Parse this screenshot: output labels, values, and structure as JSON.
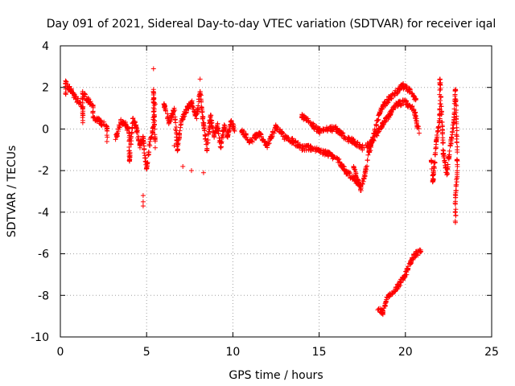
{
  "chart_data": {
    "type": "scatter",
    "title": "Day 091 of 2021, Sidereal Day-to-day VTEC variation (SDTVAR) for receiver iqal",
    "xlabel": "GPS time / hours",
    "ylabel": "SDTVAR / TECUs",
    "xlim": [
      0,
      25
    ],
    "ylim": [
      -10,
      4
    ],
    "xticks": [
      0,
      5,
      10,
      15,
      20,
      25
    ],
    "yticks": [
      -10,
      -8,
      -6,
      -4,
      -2,
      0,
      2,
      4
    ],
    "grid": true,
    "marker": "+",
    "color": "#ff0000",
    "series": [
      {
        "name": "SDTVAR",
        "approximate_track": [
          {
            "segment": "a",
            "points": [
              [
                0.3,
                1.7
              ],
              [
                0.3,
                2.2
              ],
              [
                1.3,
                1.0
              ],
              [
                1.3,
                0.3
              ],
              [
                1.3,
                1.7
              ],
              [
                1.9,
                1.1
              ],
              [
                1.9,
                0.6
              ],
              [
                2.7,
                0.1
              ],
              [
                2.7,
                -0.6
              ]
            ]
          },
          {
            "segment": "b",
            "points": [
              [
                3.2,
                -0.5
              ],
              [
                3.5,
                0.4
              ],
              [
                3.8,
                0.2
              ],
              [
                4.0,
                -0.2
              ],
              [
                4.0,
                -1.5
              ],
              [
                4.2,
                0.5
              ],
              [
                4.4,
                0.1
              ],
              [
                4.6,
                -0.8
              ],
              [
                4.8,
                -0.4
              ],
              [
                4.9,
                -1.4
              ],
              [
                5.0,
                -1.9
              ],
              [
                5.2,
                -0.6
              ],
              [
                5.4,
                0.1
              ],
              [
                5.4,
                1.9
              ],
              [
                5.5,
                -0.9
              ]
            ]
          },
          {
            "segment": "outliers",
            "points": [
              [
                4.8,
                -3.2
              ],
              [
                4.8,
                -3.5
              ],
              [
                4.8,
                -3.7
              ],
              [
                5.4,
                2.9
              ],
              [
                5.5,
                1.2
              ],
              [
                6.6,
                -0.8
              ],
              [
                7.1,
                -1.8
              ],
              [
                7.6,
                -2.0
              ],
              [
                8.3,
                -2.1
              ],
              [
                8.1,
                2.4
              ]
            ]
          },
          {
            "segment": "c",
            "points": [
              [
                6.0,
                1.2
              ],
              [
                6.3,
                0.3
              ],
              [
                6.6,
                1.0
              ],
              [
                6.8,
                -1.0
              ],
              [
                7.0,
                0.4
              ],
              [
                7.3,
                0.9
              ],
              [
                7.6,
                1.3
              ],
              [
                7.9,
                0.5
              ],
              [
                8.1,
                1.8
              ],
              [
                8.3,
                0.2
              ],
              [
                8.5,
                -1.0
              ],
              [
                8.7,
                0.6
              ],
              [
                8.9,
                -0.3
              ],
              [
                9.1,
                0.2
              ],
              [
                9.3,
                -0.9
              ],
              [
                9.5,
                0.2
              ],
              [
                9.7,
                -0.4
              ],
              [
                9.9,
                0.4
              ],
              [
                10.1,
                -0.1
              ]
            ]
          },
          {
            "segment": "d",
            "points": [
              [
                10.5,
                -0.1
              ],
              [
                11.0,
                -0.6
              ],
              [
                11.5,
                -0.2
              ],
              [
                12.0,
                -0.8
              ],
              [
                12.5,
                0.1
              ],
              [
                13.0,
                -0.4
              ],
              [
                13.5,
                -0.6
              ],
              [
                14.0,
                -0.9
              ],
              [
                14.5,
                -0.9
              ],
              [
                15.0,
                -1.0
              ],
              [
                15.5,
                -1.2
              ],
              [
                16.0,
                -1.4
              ],
              [
                16.5,
                -2.0
              ],
              [
                17.0,
                -2.4
              ],
              [
                17.3,
                -2.6
              ]
            ]
          },
          {
            "segment": "e",
            "points": [
              [
                14.0,
                0.6
              ],
              [
                14.5,
                0.3
              ],
              [
                15.0,
                -0.1
              ],
              [
                15.5,
                0.0
              ],
              [
                16.0,
                0.0
              ],
              [
                16.5,
                -0.4
              ],
              [
                17.0,
                -0.6
              ],
              [
                17.5,
                -0.9
              ],
              [
                18.0,
                -0.7
              ],
              [
                18.5,
                0.0
              ],
              [
                19.0,
                0.6
              ],
              [
                19.5,
                1.2
              ],
              [
                20.0,
                1.3
              ],
              [
                20.5,
                0.9
              ],
              [
                20.8,
                -0.2
              ]
            ]
          },
          {
            "segment": "f",
            "points": [
              [
                17.0,
                -1.8
              ],
              [
                17.2,
                -2.4
              ],
              [
                17.4,
                -2.9
              ],
              [
                17.6,
                -2.4
              ],
              [
                17.8,
                -1.5
              ],
              [
                18.0,
                -0.8
              ],
              [
                18.3,
                0.2
              ],
              [
                18.6,
                1.0
              ],
              [
                19.0,
                1.4
              ],
              [
                19.4,
                1.7
              ],
              [
                19.8,
                2.1
              ],
              [
                20.2,
                1.9
              ],
              [
                20.6,
                1.4
              ]
            ]
          },
          {
            "segment": "g",
            "points": [
              [
                18.4,
                -8.7
              ],
              [
                18.7,
                -8.8
              ],
              [
                18.9,
                -8.2
              ],
              [
                19.3,
                -7.8
              ],
              [
                19.7,
                -7.4
              ],
              [
                20.0,
                -7.0
              ],
              [
                20.3,
                -6.4
              ],
              [
                20.6,
                -6.0
              ],
              [
                20.9,
                -5.9
              ]
            ]
          },
          {
            "segment": "h",
            "points": [
              [
                21.5,
                -1.5
              ],
              [
                21.6,
                -2.5
              ],
              [
                21.8,
                -0.5
              ],
              [
                22.0,
                0.5
              ],
              [
                22.0,
                2.4
              ],
              [
                22.2,
                -1.2
              ],
              [
                22.4,
                -2.2
              ],
              [
                22.6,
                -0.8
              ],
              [
                22.8,
                0.3
              ],
              [
                22.9,
                1.9
              ],
              [
                23.0,
                -1.0
              ],
              [
                23.0,
                -2.1
              ],
              [
                22.9,
                -3.3
              ],
              [
                22.9,
                -4.5
              ]
            ]
          }
        ]
      }
    ]
  }
}
